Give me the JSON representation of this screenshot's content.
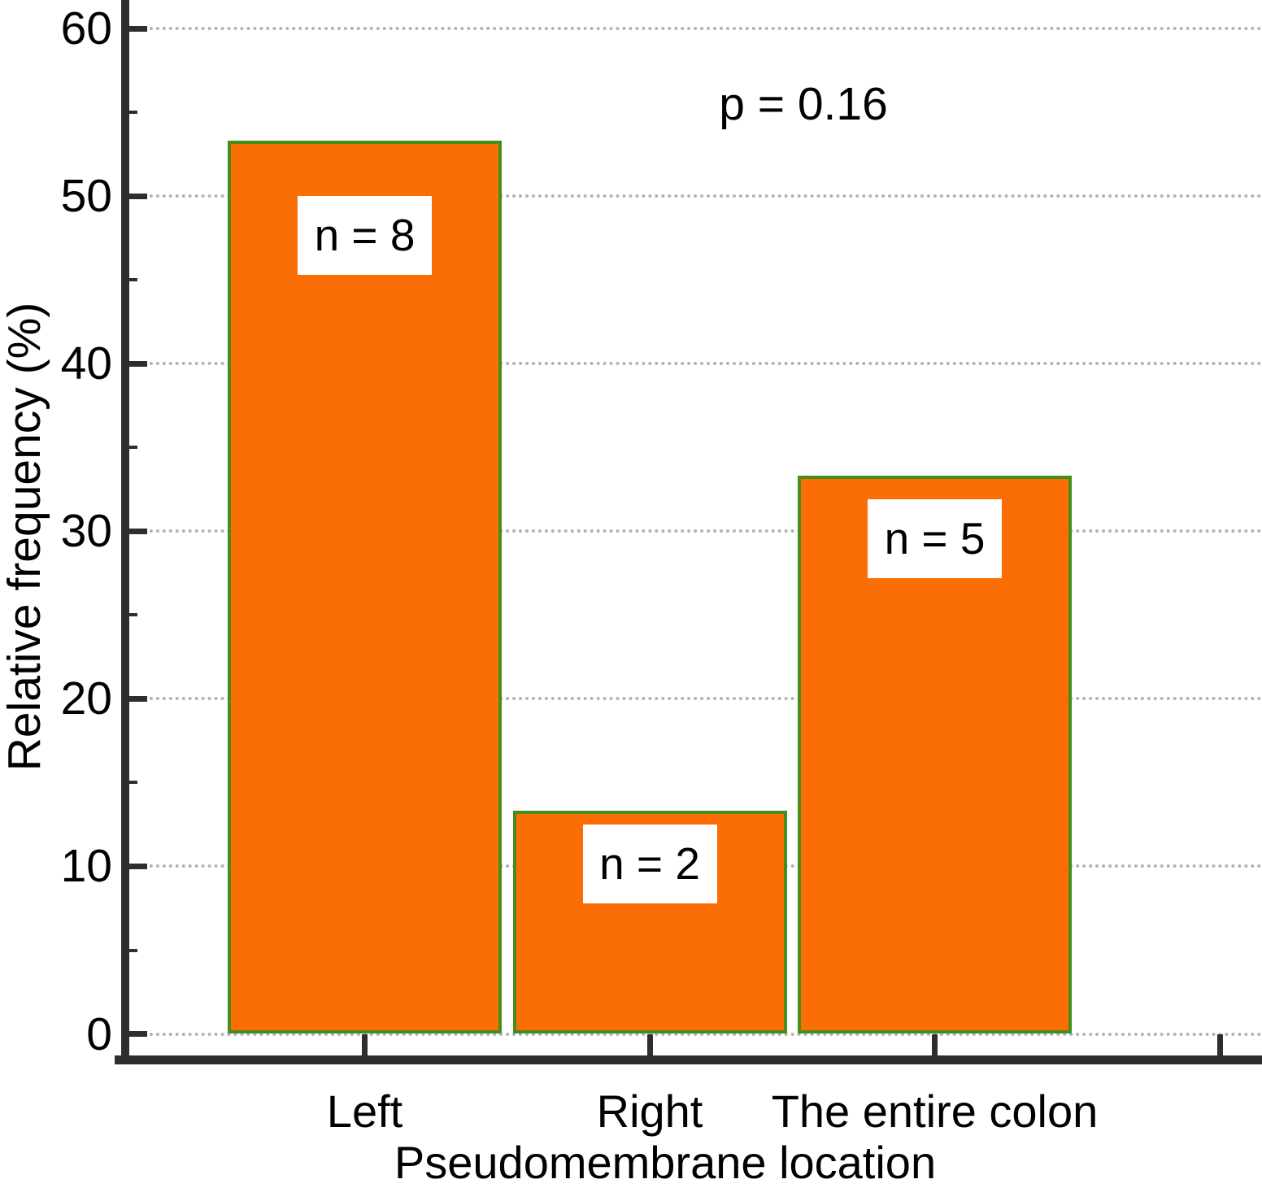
{
  "chart_data": {
    "type": "bar",
    "title": "",
    "categories": [
      "Left",
      "Right",
      "The entire colon"
    ],
    "values": [
      53.3,
      13.3,
      33.3
    ],
    "counts": [
      8,
      2,
      5
    ],
    "bar_labels": [
      "n = 8",
      "n = 2",
      "n = 5"
    ],
    "annotation": "p = 0.16",
    "xlabel": "Pseudomembrane location",
    "ylabel": "Relative frequency (%)",
    "ylim": [
      0,
      60
    ],
    "y_major_ticks": [
      0,
      10,
      20,
      30,
      40,
      50,
      60
    ],
    "y_minor_ticks": [
      5,
      15,
      25,
      35,
      45,
      55
    ],
    "x_extra_unlabeled_tick": true,
    "grid": "horizontal dotted lines at major y ticks",
    "legend_position": "none",
    "colors": {
      "bar_fill": "#FA6E05",
      "bar_border": "#458D1D",
      "axis": "#2E2E2E",
      "gridline": "#B3B3B3",
      "label_box_bg": "#FFFFFF",
      "text": "#000000"
    }
  }
}
